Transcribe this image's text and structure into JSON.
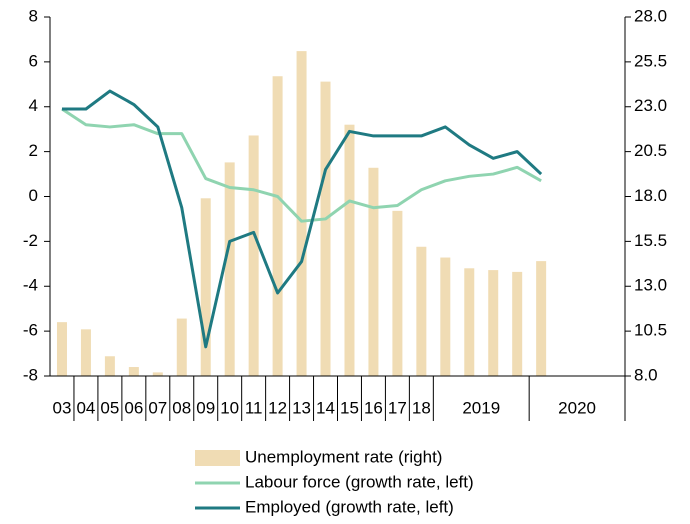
{
  "chart_data": {
    "type": "bar",
    "categories": [
      "03",
      "04",
      "05",
      "06",
      "07",
      "08",
      "09",
      "10",
      "11",
      "12",
      "13",
      "14",
      "15",
      "16",
      "17",
      "18",
      "2019",
      null,
      null,
      null,
      "2020",
      null,
      null,
      null
    ],
    "series": [
      {
        "name": "Unemployment rate (right)",
        "type": "bar",
        "axis": "y2",
        "color": "#f0dcb4",
        "values": [
          11.0,
          10.6,
          9.1,
          8.5,
          8.2,
          11.2,
          17.9,
          19.9,
          21.4,
          24.7,
          26.1,
          24.4,
          22.0,
          19.6,
          17.2,
          15.2,
          14.6,
          14.0,
          13.9,
          13.8,
          14.4,
          null,
          null,
          null
        ]
      },
      {
        "name": "Labour force (growth rate, left)",
        "type": "line",
        "color": "#8fd4b0",
        "values": [
          3.9,
          3.2,
          3.1,
          3.2,
          2.8,
          2.8,
          0.8,
          0.4,
          0.3,
          0.0,
          -1.1,
          -1.0,
          -0.2,
          -0.5,
          -0.4,
          0.3,
          0.7,
          0.9,
          1.0,
          1.3,
          0.7,
          null,
          null,
          null
        ]
      },
      {
        "name": "Employed (growth rate, left)",
        "type": "line",
        "color": "#1f7a82",
        "values": [
          3.9,
          3.9,
          4.7,
          4.1,
          3.1,
          -0.5,
          -6.7,
          -2.0,
          -1.6,
          -4.3,
          -2.9,
          1.2,
          2.9,
          2.7,
          2.7,
          2.7,
          3.1,
          2.3,
          1.7,
          2.0,
          1.0,
          null,
          null,
          null
        ]
      }
    ],
    "ylim": [
      -8,
      8
    ],
    "yticks": [
      -8,
      -6,
      -4,
      -2,
      0,
      2,
      4,
      6,
      8
    ],
    "y2lim": [
      8,
      28
    ],
    "y2ticks": [
      {
        "value": 8,
        "label": "8.0"
      },
      {
        "value": 10.5,
        "label": "10.5"
      },
      {
        "value": 13,
        "label": "13.0"
      },
      {
        "value": 15.5,
        "label": "15.5"
      },
      {
        "value": 18,
        "label": "18.0"
      },
      {
        "value": 20.5,
        "label": "20.5"
      },
      {
        "value": 23,
        "label": "23.0"
      },
      {
        "value": 25.5,
        "label": "25.5"
      },
      {
        "value": 28,
        "label": "28.0"
      }
    ],
    "grid": false
  }
}
